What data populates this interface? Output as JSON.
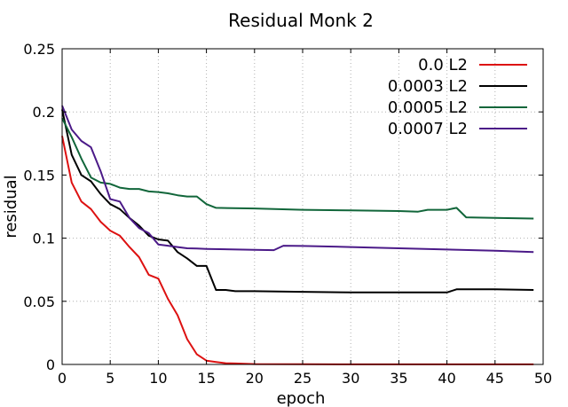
{
  "chart_data": {
    "type": "line",
    "title": "Residual Monk 2",
    "xlabel": "epoch",
    "ylabel": "residual",
    "xlim": [
      0,
      50
    ],
    "ylim": [
      0,
      0.25
    ],
    "xticks": [
      0,
      5,
      10,
      15,
      20,
      25,
      30,
      35,
      40,
      45,
      50
    ],
    "yticks": [
      0,
      0.05,
      0.1,
      0.15,
      0.2,
      0.25
    ],
    "xtick_labels": [
      "0",
      "5",
      "10",
      "15",
      "20",
      "25",
      "30",
      "35",
      "40",
      "45",
      "50"
    ],
    "ytick_labels": [
      "0",
      "0.05",
      "0.1",
      "0.15",
      "0.2",
      "0.25"
    ],
    "grid": true,
    "legend_position": "top-right",
    "series": [
      {
        "name": "0.0 L2",
        "color": "#dd1111",
        "x": [
          0,
          1,
          2,
          3,
          4,
          5,
          6,
          7,
          8,
          9,
          10,
          11,
          12,
          13,
          14,
          15,
          16,
          17,
          18,
          19,
          20,
          25,
          30,
          35,
          40,
          45,
          49
        ],
        "y": [
          0.181,
          0.144,
          0.129,
          0.123,
          0.113,
          0.106,
          0.102,
          0.093,
          0.085,
          0.071,
          0.068,
          0.052,
          0.039,
          0.02,
          0.008,
          0.003,
          0.002,
          0.001,
          0.0008,
          0.0005,
          0.0003,
          0.0002,
          0.0001,
          0.0001,
          0.0001,
          0.0001,
          0.0001
        ]
      },
      {
        "name": "0.0003 L2",
        "color": "#000000",
        "x": [
          0,
          1,
          2,
          3,
          4,
          5,
          6,
          7,
          8,
          9,
          10,
          11,
          12,
          13,
          14,
          15,
          16,
          17,
          18,
          20,
          25,
          30,
          35,
          40,
          41,
          45,
          49
        ],
        "y": [
          0.202,
          0.166,
          0.15,
          0.145,
          0.135,
          0.127,
          0.123,
          0.116,
          0.11,
          0.102,
          0.099,
          0.098,
          0.089,
          0.084,
          0.078,
          0.078,
          0.059,
          0.059,
          0.058,
          0.058,
          0.0575,
          0.057,
          0.057,
          0.057,
          0.0595,
          0.0595,
          0.059
        ]
      },
      {
        "name": "0.0005 L2",
        "color": "#11663a",
        "x": [
          0,
          1,
          2,
          3,
          4,
          5,
          6,
          7,
          8,
          9,
          10,
          11,
          12,
          13,
          14,
          15,
          16,
          20,
          25,
          30,
          35,
          37,
          38,
          39,
          40,
          41,
          42,
          45,
          49
        ],
        "y": [
          0.195,
          0.18,
          0.163,
          0.148,
          0.144,
          0.143,
          0.14,
          0.139,
          0.139,
          0.137,
          0.1365,
          0.1355,
          0.134,
          0.133,
          0.133,
          0.127,
          0.124,
          0.1235,
          0.1225,
          0.122,
          0.1215,
          0.121,
          0.1225,
          0.1225,
          0.1225,
          0.124,
          0.1165,
          0.116,
          0.1155
        ]
      },
      {
        "name": "0.0007 L2",
        "color": "#4b1a88",
        "x": [
          0,
          1,
          2,
          3,
          4,
          5,
          6,
          7,
          8,
          9,
          10,
          11,
          12,
          13,
          14,
          15,
          20,
          22,
          23,
          25,
          30,
          35,
          40,
          45,
          49
        ],
        "y": [
          0.205,
          0.186,
          0.177,
          0.172,
          0.153,
          0.131,
          0.129,
          0.116,
          0.108,
          0.104,
          0.095,
          0.094,
          0.093,
          0.092,
          0.0918,
          0.0915,
          0.0908,
          0.0905,
          0.094,
          0.0938,
          0.093,
          0.092,
          0.091,
          0.09,
          0.089
        ]
      }
    ]
  }
}
